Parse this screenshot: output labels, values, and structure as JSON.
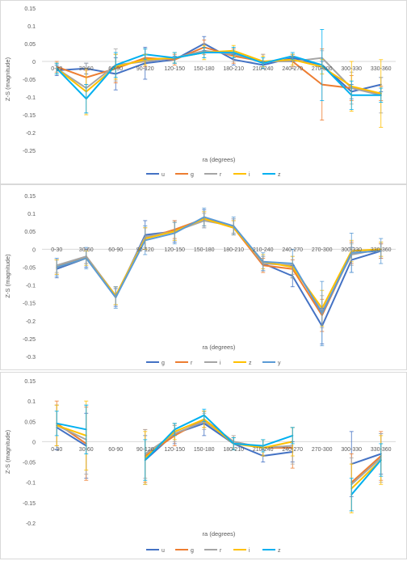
{
  "chart_data": [
    {
      "type": "line",
      "xlabel": "ra (degrees)",
      "ylabel": "Z-S (magnitude)",
      "ylim": [
        -0.25,
        0.15
      ],
      "yticks": [
        0.15,
        0.1,
        0.05,
        0,
        -0.05,
        -0.1,
        -0.15,
        -0.2,
        -0.25
      ],
      "ytick_labels": [
        "0.15",
        "0.1",
        "0.05",
        "0",
        "-0.05",
        "-0.1",
        "-0.15",
        "-0.2",
        "-0.25"
      ],
      "categories": [
        "0-30",
        "30-60",
        "60-90",
        "90-120",
        "120-150",
        "150-180",
        "180-210",
        "210-240",
        "240-270",
        "270-300",
        "300-330",
        "330-360"
      ],
      "grid": false,
      "legend": "bottom",
      "series": [
        {
          "name": "u",
          "color": "#4472C4",
          "values": [
            -0.025,
            -0.02,
            -0.035,
            -0.005,
            0.005,
            0.05,
            0.005,
            -0.01,
            0.01,
            -0.01,
            -0.085,
            -0.065
          ],
          "errors": [
            0.015,
            0.015,
            0.045,
            0.045,
            0.01,
            0.02,
            0.015,
            0.01,
            0.01,
            0.01,
            0.02,
            0.02
          ]
        },
        {
          "name": "g",
          "color": "#ED7D31",
          "values": [
            -0.015,
            -0.045,
            -0.02,
            0.01,
            0.005,
            0.04,
            0.015,
            0.0,
            0.0,
            -0.065,
            -0.075,
            -0.09
          ],
          "errors": [
            0.015,
            0.02,
            0.04,
            0.025,
            0.015,
            0.02,
            0.02,
            0.02,
            0.015,
            0.1,
            0.035,
            0.02
          ]
        },
        {
          "name": "r",
          "color": "#A5A5A5",
          "values": [
            -0.02,
            -0.075,
            -0.01,
            0.0,
            0.01,
            0.03,
            0.02,
            0.0,
            0.0,
            0.01,
            -0.075,
            -0.095
          ],
          "errors": [
            0.015,
            0.07,
            0.045,
            0.02,
            0.015,
            0.02,
            0.02,
            0.02,
            0.02,
            0.02,
            0.045,
            0.05
          ]
        },
        {
          "name": "i",
          "color": "#FFC000",
          "values": [
            -0.02,
            -0.085,
            -0.015,
            0.005,
            0.01,
            0.025,
            0.03,
            0.0,
            0.005,
            -0.015,
            -0.07,
            -0.09
          ],
          "errors": [
            0.015,
            0.065,
            0.035,
            0.015,
            0.015,
            0.02,
            0.015,
            0.015,
            0.015,
            0.02,
            0.07,
            0.095
          ]
        },
        {
          "name": "z",
          "color": "#00B0F0",
          "values": [
            -0.02,
            -0.105,
            -0.01,
            0.02,
            0.01,
            0.025,
            0.025,
            -0.005,
            0.015,
            -0.01,
            -0.095,
            -0.095
          ],
          "errors": [
            0.015,
            0.04,
            0.035,
            0.015,
            0.015,
            0.015,
            0.015,
            0.015,
            0.01,
            0.1,
            0.04,
            0.02
          ]
        }
      ]
    },
    {
      "type": "line",
      "xlabel": "ra (degrees)",
      "ylabel": "Z-S (magnitude)",
      "ylim": [
        -0.3,
        0.15
      ],
      "yticks": [
        0.15,
        0.1,
        0.05,
        0,
        -0.05,
        -0.1,
        -0.15,
        -0.2,
        -0.25,
        -0.3
      ],
      "ytick_labels": [
        "0.15",
        "0.1",
        "0.05",
        "0",
        "-0.05",
        "-0.1",
        "-0.15",
        "-0.2",
        "-0.25",
        "-0.3"
      ],
      "categories": [
        "0-30",
        "30-60",
        "60-90",
        "90-120",
        "120-150",
        "150-180",
        "180-210",
        "210-240",
        "240-270",
        "270-300",
        "300-330",
        "330-360"
      ],
      "grid": false,
      "legend": "bottom",
      "series": [
        {
          "name": "g",
          "color": "#4472C4",
          "values": [
            -0.055,
            -0.025,
            -0.135,
            0.04,
            0.05,
            0.085,
            0.065,
            -0.04,
            -0.075,
            -0.215,
            -0.03,
            -0.005
          ],
          "errors": [
            0.025,
            0.025,
            0.025,
            0.04,
            0.03,
            0.025,
            0.02,
            0.02,
            0.03,
            0.05,
            0.035,
            0.02
          ]
        },
        {
          "name": "r",
          "color": "#ED7D31",
          "values": [
            -0.05,
            -0.02,
            -0.13,
            0.03,
            0.055,
            0.085,
            0.06,
            -0.045,
            -0.055,
            -0.185,
            -0.01,
            -0.005
          ],
          "errors": [
            0.02,
            0.02,
            0.025,
            0.03,
            0.025,
            0.02,
            0.02,
            0.02,
            0.025,
            0.045,
            0.03,
            0.02
          ]
        },
        {
          "name": "i",
          "color": "#A5A5A5",
          "values": [
            -0.045,
            -0.02,
            -0.13,
            0.035,
            0.05,
            0.08,
            0.065,
            -0.04,
            -0.045,
            -0.175,
            -0.015,
            0.0
          ],
          "errors": [
            0.02,
            0.02,
            0.025,
            0.03,
            0.025,
            0.02,
            0.02,
            0.02,
            0.025,
            0.045,
            0.03,
            0.02
          ]
        },
        {
          "name": "z",
          "color": "#FFC000",
          "values": [
            -0.05,
            -0.025,
            -0.13,
            0.03,
            0.05,
            0.085,
            0.06,
            -0.035,
            -0.05,
            -0.165,
            -0.005,
            0.0
          ],
          "errors": [
            0.02,
            0.02,
            0.025,
            0.03,
            0.025,
            0.02,
            0.02,
            0.02,
            0.03,
            0.05,
            0.03,
            0.02
          ]
        },
        {
          "name": "y",
          "color": "#5B9BD5",
          "values": [
            -0.05,
            -0.025,
            -0.135,
            0.025,
            0.045,
            0.09,
            0.065,
            -0.035,
            -0.04,
            -0.18,
            -0.01,
            -0.005
          ],
          "errors": [
            0.025,
            0.03,
            0.03,
            0.04,
            0.03,
            0.025,
            0.025,
            0.025,
            0.04,
            0.09,
            0.055,
            0.035
          ]
        }
      ]
    },
    {
      "type": "line",
      "xlabel": "ra (degrees)",
      "ylabel": "Z-S (magnitude)",
      "ylim": [
        -0.2,
        0.15
      ],
      "yticks": [
        0.15,
        0.1,
        0.05,
        0,
        -0.05,
        -0.1,
        -0.15,
        -0.2
      ],
      "ytick_labels": [
        "0.15",
        "0.1",
        "0.05",
        "0",
        "-0.05",
        "-0.1",
        "-0.15",
        "-0.2"
      ],
      "categories": [
        "0-30",
        "30-60",
        "60-90",
        "90-120",
        "120-150",
        "150-180",
        "180-210",
        "210-240",
        "240-270",
        "270-300",
        "300-330",
        "330-360"
      ],
      "grid": false,
      "legend": "bottom",
      "series": [
        {
          "name": "u",
          "color": "#4472C4",
          "values": [
            0.035,
            -0.01,
            null,
            -0.045,
            0.02,
            0.045,
            -0.005,
            -0.035,
            -0.025,
            null,
            -0.055,
            -0.03
          ],
          "errors": [
            0.055,
            0.08,
            null,
            0.06,
            0.025,
            0.03,
            0.015,
            0.015,
            0.025,
            null,
            0.08,
            0.05
          ]
        },
        {
          "name": "g",
          "color": "#ED7D31",
          "values": [
            0.045,
            -0.005,
            null,
            -0.035,
            0.015,
            0.055,
            0.0,
            -0.015,
            -0.015,
            null,
            -0.1,
            -0.035
          ],
          "errors": [
            0.055,
            0.09,
            null,
            0.065,
            0.025,
            0.02,
            0.015,
            0.02,
            0.05,
            null,
            0.07,
            0.06
          ]
        },
        {
          "name": "r",
          "color": "#A5A5A5",
          "values": [
            0.04,
            0.005,
            null,
            -0.03,
            0.02,
            0.05,
            0.0,
            -0.015,
            -0.01,
            null,
            -0.105,
            -0.04
          ],
          "errors": [
            0.05,
            0.085,
            null,
            0.06,
            0.02,
            0.02,
            0.015,
            0.02,
            0.045,
            null,
            0.065,
            0.06
          ]
        },
        {
          "name": "i",
          "color": "#FFC000",
          "values": [
            0.04,
            0.015,
            null,
            -0.04,
            0.025,
            0.055,
            -0.005,
            -0.015,
            0.0,
            null,
            -0.115,
            -0.045
          ],
          "errors": [
            0.05,
            0.085,
            null,
            0.065,
            0.02,
            0.02,
            0.015,
            0.02,
            0.035,
            null,
            0.06,
            0.06
          ]
        },
        {
          "name": "z",
          "color": "#00B0F0",
          "values": [
            0.045,
            0.03,
            null,
            -0.045,
            0.03,
            0.065,
            -0.005,
            -0.01,
            0.015,
            null,
            -0.13,
            -0.045
          ],
          "errors": [
            0.03,
            0.06,
            null,
            0.05,
            0.015,
            0.015,
            0.015,
            0.015,
            0.02,
            null,
            0.04,
            0.04
          ]
        }
      ]
    }
  ]
}
